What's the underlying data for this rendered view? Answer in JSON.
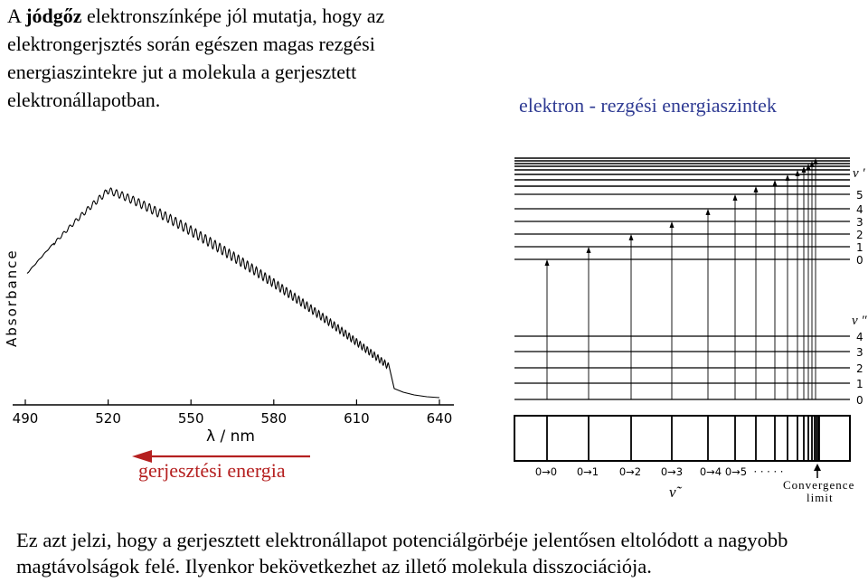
{
  "intro": {
    "prefix": "A ",
    "bold": "jódgőz",
    "rest": " elektronszínképe jól mutatja, hogy az elektrongerjsztés során egészen magas  rezgési energiaszintekre jut a molekula a gerjesztett elektronállapotban."
  },
  "levels_title": "elektron - rezgési energiaszintek",
  "excite_label": "gerjesztési energia",
  "bottom_text": "Ez azt jelzi, hogy a gerjesztett elektronállapot potenciálgörbéje jelentősen eltolódott a nagyobb magtávolságok felé. Ilyenkor bekövetkezhet az illető molekula disszociációja.",
  "chart_data": {
    "type": "line",
    "ylabel": "Absorbance",
    "xlabel": "λ / nm",
    "x_ticks": [
      "490",
      "520",
      "550",
      "580",
      "610",
      "640"
    ],
    "xlim": [
      490,
      640
    ]
  },
  "energy_diagram": {
    "upper_state_label": "v ′",
    "upper_levels": [
      "5",
      "4",
      "3",
      "2",
      "1",
      "0"
    ],
    "lower_state_label": "v ″",
    "lower_levels": [
      "4",
      "3",
      "2",
      "1",
      "0"
    ],
    "transitions": [
      "0→0",
      "0→1",
      "0→2",
      "0→3",
      "0→4",
      "0→5",
      "· · · · ·"
    ],
    "nu_label": "ν̃",
    "convergence_line1": "Convergence",
    "convergence_line2": "limit"
  }
}
